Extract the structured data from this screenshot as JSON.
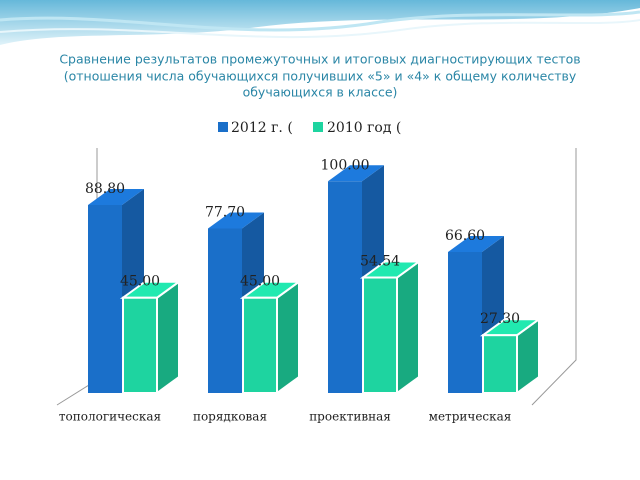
{
  "chart_data": {
    "type": "bar3d",
    "title": [
      "Сравнение результатов  промежуточных и итоговых диагностирующих тестов",
      "(отношения числа  обучающихся  получивших «5» и «4» к общему количеству",
      "обучающихся в классе)"
    ],
    "categories": [
      "топологическая",
      "порядковая",
      "проективная",
      "метрическая"
    ],
    "series": [
      {
        "name": "2012 г. (",
        "color": "#1a6fc9",
        "values": [
          88.8,
          77.7,
          100,
          66.6
        ],
        "value_labels": [
          "88.80",
          "77.70",
          "100.00",
          "66.60"
        ]
      },
      {
        "name": "2010 год (",
        "color": "#1ed4a0",
        "values": [
          45,
          45,
          54.54,
          27.3
        ],
        "value_labels": [
          "45.00",
          "45.00",
          "54.54",
          "27.30"
        ]
      }
    ]
  }
}
